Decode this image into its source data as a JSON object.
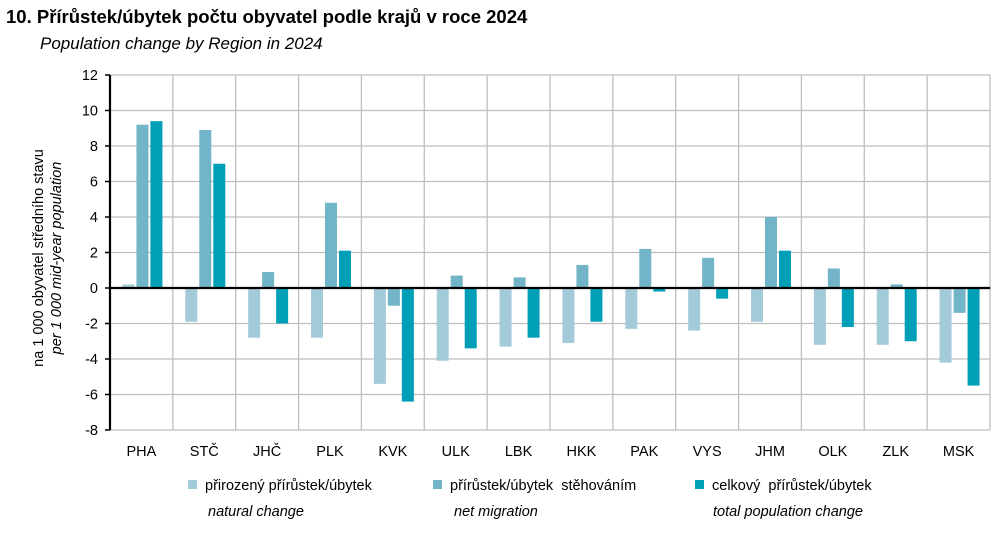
{
  "header": {
    "title": "10. Přírůstek/úbytek počtu obyvatel podle krajů v roce 2024",
    "subtitle": "Population change by Region in 2024"
  },
  "chart_data": {
    "type": "bar",
    "title": "10. Přírůstek/úbytek počtu obyvatel podle krajů v roce 2024",
    "subtitle": "Population change by Region in 2024",
    "xlabel": "",
    "ylabel": "na 1 000 obyvatel středního stavu",
    "ylabel_en": "per 1 000 mid-year population",
    "ylim": [
      -8,
      12
    ],
    "yticks": [
      12,
      10,
      8,
      6,
      4,
      2,
      0,
      -2,
      -4,
      -6,
      -8
    ],
    "grid": true,
    "legend_position": "bottom",
    "categories": [
      "PHA",
      "STČ",
      "JHČ",
      "PLK",
      "KVK",
      "ULK",
      "LBK",
      "HKK",
      "PAK",
      "VYS",
      "JHM",
      "OLK",
      "ZLK",
      "MSK"
    ],
    "series": [
      {
        "name": "přirozený přírůstek/úbytek",
        "name_en": "natural change",
        "color": "#a3cad8",
        "values": [
          0.2,
          -1.9,
          -2.8,
          -2.8,
          -5.4,
          -4.1,
          -3.3,
          -3.1,
          -2.3,
          -2.4,
          -1.9,
          -3.2,
          -3.2,
          -4.2
        ]
      },
      {
        "name": "přírůstek/úbytek  stěhováním",
        "name_en": "net migration",
        "color": "#72b4c8",
        "values": [
          9.2,
          8.9,
          0.9,
          4.8,
          -1.0,
          0.7,
          0.6,
          1.3,
          2.2,
          1.7,
          4.0,
          1.1,
          0.2,
          -1.4
        ]
      },
      {
        "name": "celkový  přírůstek/úbytek",
        "name_en": "total population change",
        "color": "#009fb8",
        "values": [
          9.4,
          7.0,
          -2.0,
          2.1,
          -6.4,
          -3.4,
          -2.8,
          -1.9,
          -0.2,
          -0.6,
          2.1,
          -2.2,
          -3.0,
          -5.5
        ]
      }
    ]
  }
}
